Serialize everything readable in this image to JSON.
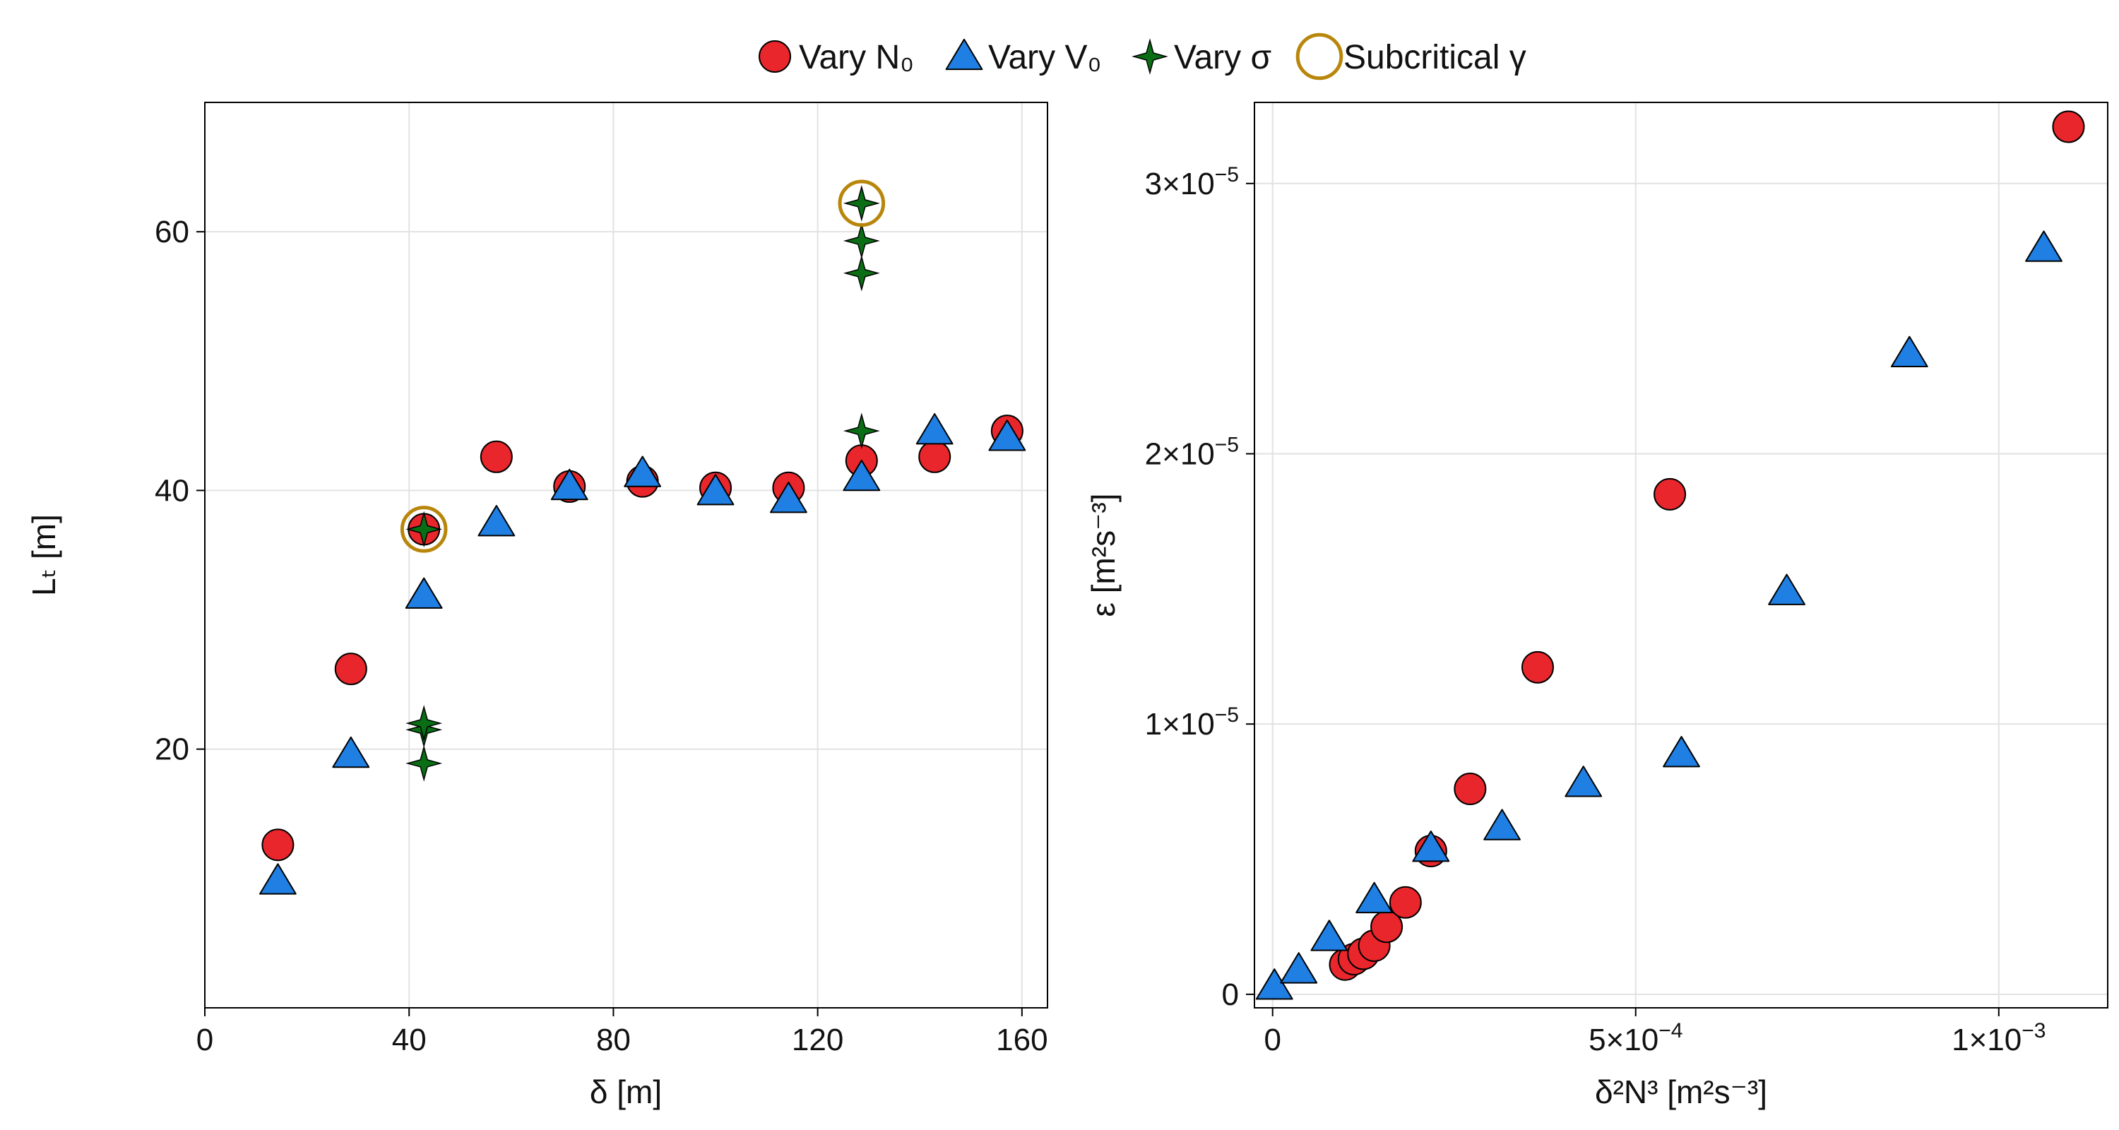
{
  "legend": [
    {
      "label": "Vary N₀",
      "marker": "circle",
      "color": "#e8262b"
    },
    {
      "label": "Vary V₀",
      "marker": "triangle",
      "color": "#1f7fe3"
    },
    {
      "label": "Vary σ",
      "marker": "star4",
      "color": "#0a6e14"
    },
    {
      "label": "Subcritical γ",
      "marker": "ring",
      "color": "#b8860b"
    }
  ],
  "chart_data": [
    {
      "type": "scatter",
      "xlabel": "δ [m]",
      "ylabel": "Lₜ [m]",
      "xlim": [
        0,
        165
      ],
      "ylim": [
        0,
        70
      ],
      "xticks": [
        0,
        40,
        80,
        120,
        160
      ],
      "yticks": [
        20,
        40,
        60
      ],
      "grid": true,
      "legend_position": "top-center",
      "series": [
        {
          "name": "Vary N₀",
          "marker": "circle",
          "color": "#e8262b",
          "x": [
            14.3,
            28.6,
            42.9,
            57.1,
            71.4,
            85.7,
            100.0,
            114.3,
            128.6,
            142.9,
            157.1
          ],
          "y": [
            12.6,
            26.2,
            37.0,
            42.6,
            40.3,
            40.7,
            40.2,
            40.2,
            42.3,
            42.6,
            44.6
          ]
        },
        {
          "name": "Vary V₀",
          "marker": "triangle",
          "color": "#1f7fe3",
          "x": [
            14.3,
            28.6,
            42.9,
            57.1,
            71.4,
            85.7,
            100.0,
            114.3,
            128.6,
            142.9,
            157.1
          ],
          "y": [
            9.8,
            19.6,
            31.9,
            37.5,
            40.3,
            41.3,
            39.9,
            39.3,
            41.0,
            44.6,
            44.1
          ]
        },
        {
          "name": "Vary σ",
          "marker": "star4",
          "color": "#0a6e14",
          "x": [
            42.9,
            42.9,
            42.9,
            42.9,
            128.6,
            128.6,
            128.6,
            128.6
          ],
          "y": [
            18.9,
            21.5,
            22.0,
            37.0,
            44.6,
            56.8,
            59.3,
            62.2
          ]
        },
        {
          "name": "Subcritical γ",
          "marker": "ring",
          "color": "#b8860b",
          "x": [
            42.9,
            128.6
          ],
          "y": [
            37.0,
            62.2
          ]
        }
      ]
    },
    {
      "type": "scatter",
      "xlabel": "δ²N³ [m²s⁻³]",
      "ylabel": "ε [m²s⁻³]",
      "xlim": [
        -2.5e-05,
        0.00115
      ],
      "ylim": [
        -5e-07,
        3.3e-05
      ],
      "xticks": [
        0,
        0.0005,
        0.001
      ],
      "xtick_labels": [
        {
          "mantissa": "0",
          "exp": ""
        },
        {
          "mantissa": "5×10",
          "exp": "−4"
        },
        {
          "mantissa": "1×10",
          "exp": "−3"
        }
      ],
      "yticks": [
        0,
        1e-05,
        2e-05,
        3e-05
      ],
      "ytick_labels": [
        {
          "mantissa": "0",
          "exp": ""
        },
        {
          "mantissa": "1×10",
          "exp": "−5"
        },
        {
          "mantissa": "2×10",
          "exp": "−5"
        },
        {
          "mantissa": "3×10",
          "exp": "−5"
        }
      ],
      "grid": true,
      "series": [
        {
          "name": "Vary N₀",
          "marker": "circle",
          "color": "#e8262b",
          "x": [
            0.0001,
            0.000112,
            0.000125,
            0.00014,
            0.000157,
            0.000183,
            0.000218,
            0.000272,
            0.000365,
            0.000547,
            0.001096
          ],
          "y": [
            1.1e-06,
            1.3e-06,
            1.5e-06,
            1.8e-06,
            2.5e-06,
            3.4e-06,
            5.3e-06,
            7.6e-06,
            1.21e-05,
            1.85e-05,
            3.21e-05
          ]
        },
        {
          "name": "Vary V₀",
          "marker": "triangle",
          "color": "#1f7fe3",
          "x": [
            2.5e-06,
            3.6e-05,
            7.8e-05,
            0.00014,
            0.000218,
            0.000316,
            0.000428,
            0.000563,
            0.000708,
            0.000877,
            0.001062
          ],
          "y": [
            3e-07,
            9e-07,
            2.1e-06,
            3.5e-06,
            5.4e-06,
            6.2e-06,
            7.8e-06,
            8.9e-06,
            1.49e-05,
            2.37e-05,
            2.76e-05
          ]
        }
      ]
    }
  ]
}
